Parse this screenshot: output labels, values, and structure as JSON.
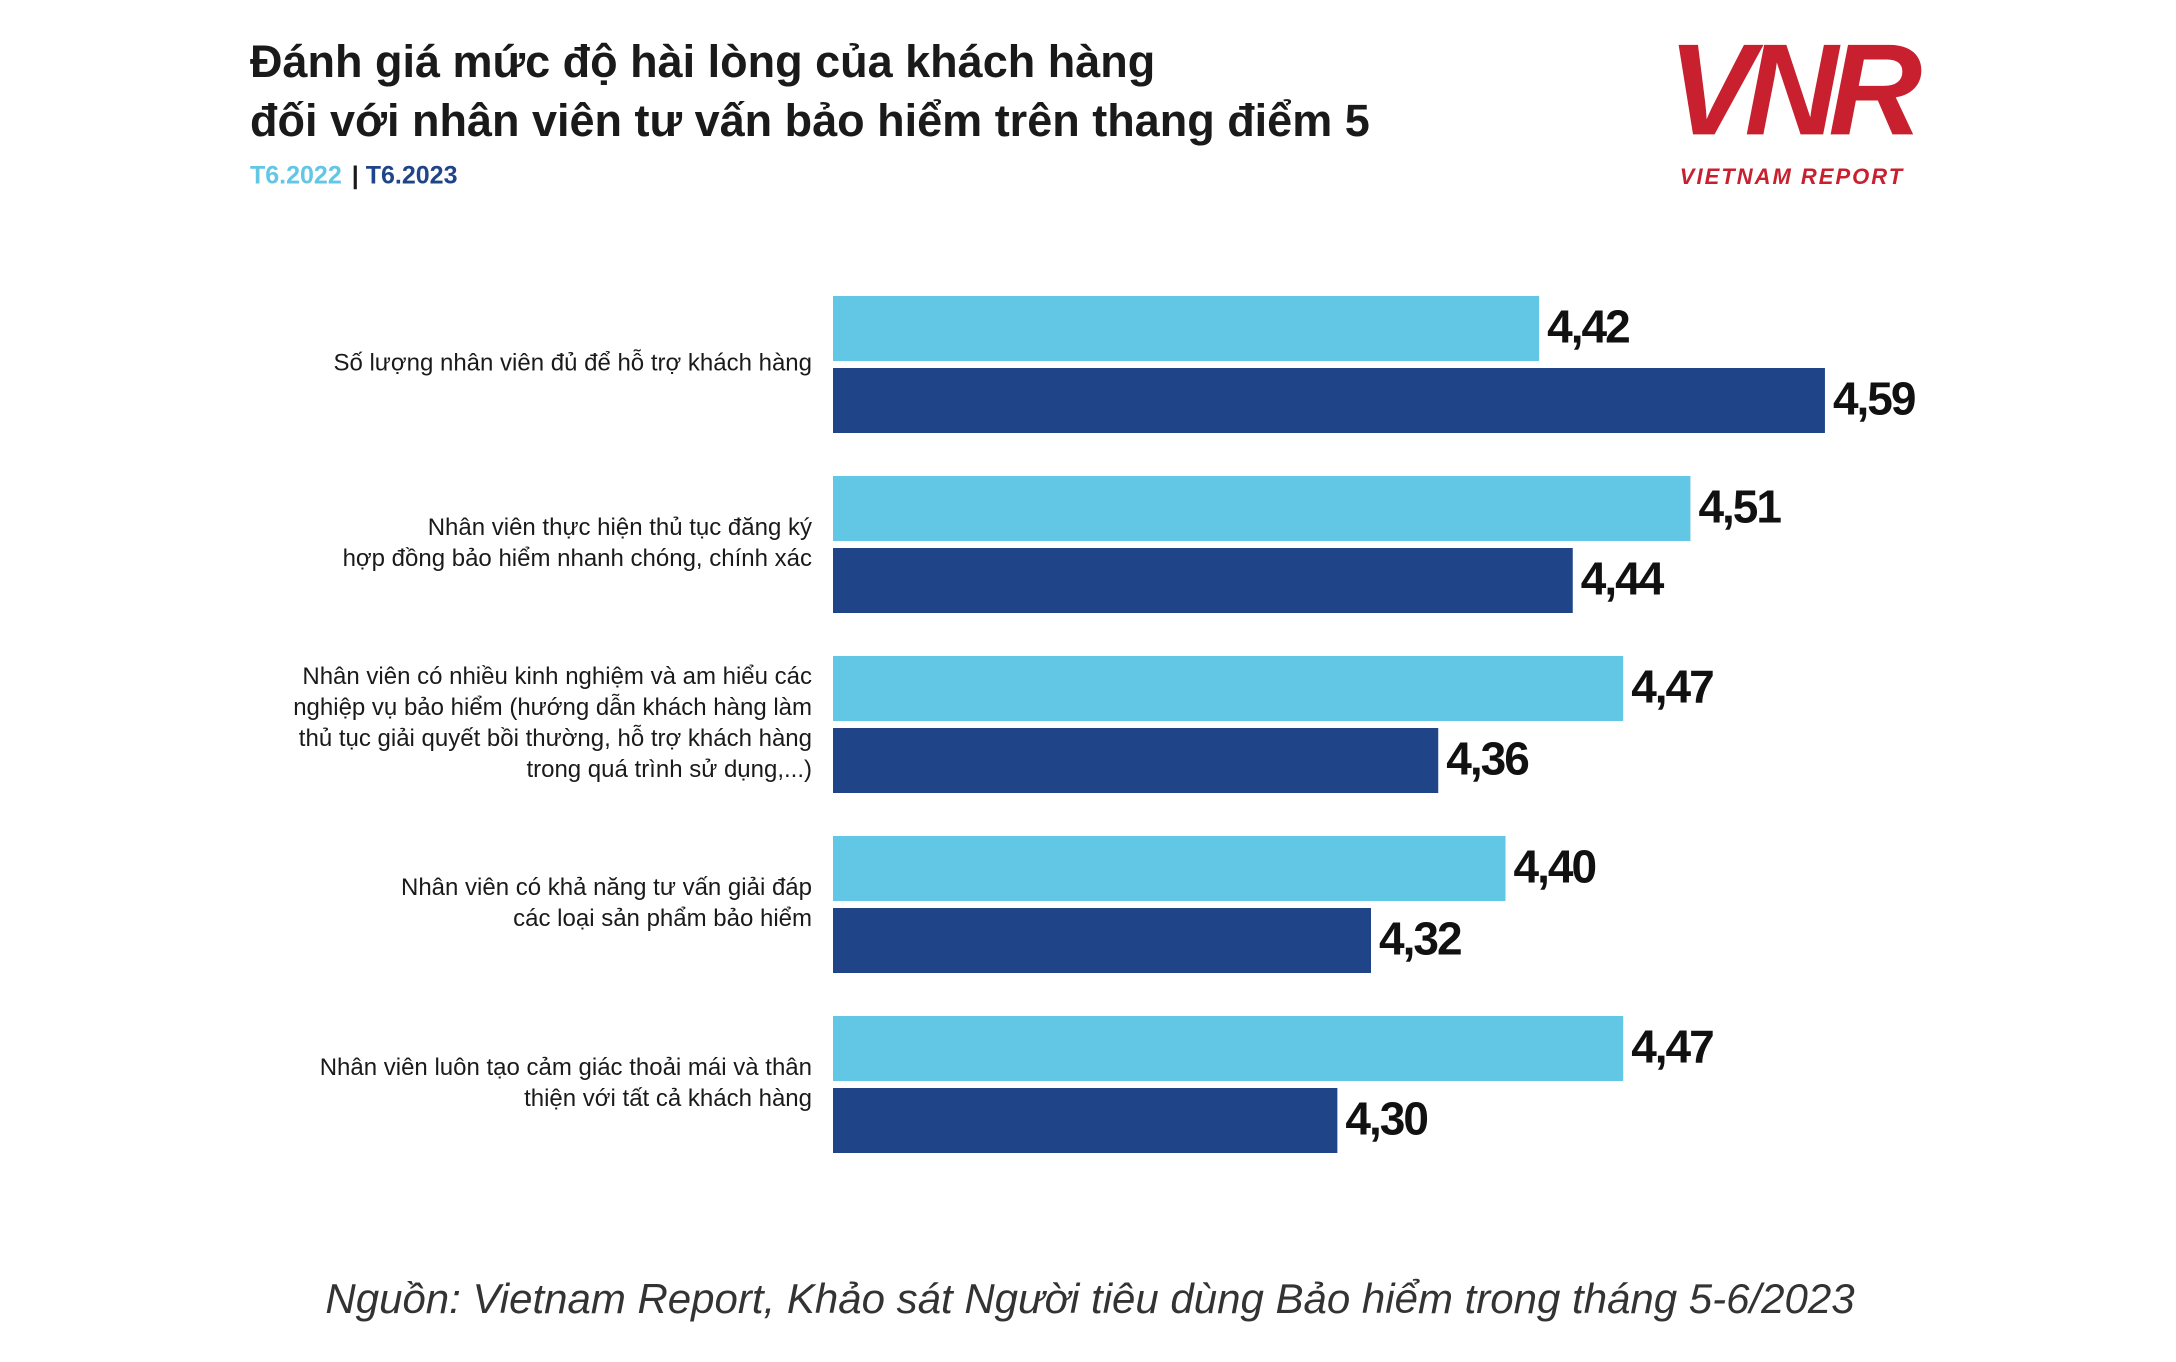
{
  "chart_data": {
    "type": "bar",
    "orientation": "horizontal",
    "title": "Đánh giá mức độ hài lòng của khách hàng\nđối với nhân viên tư vấn bảo hiểm trên thang điểm 5",
    "logo": "VNR",
    "logo_tagline": "VIETNAM REPORT",
    "categories": [
      "Số lượng nhân viên đủ để hỗ trợ khách hàng",
      "Nhân viên thực hiện thủ tục đăng ký\nhợp đồng bảo hiểm nhanh chóng, chính xác",
      "Nhân viên có nhiều kinh nghiệm và am hiểu các\nnghiệp vụ bảo hiểm (hướng dẫn khách hàng làm\nthủ tục giải quyết bồi thường, hỗ trợ khách hàng\ntrong quá trình sử dụng,...)",
      "Nhân viên có khả năng tư vấn giải đáp\ncác loại sản phẩm bảo hiểm",
      "Nhân viên luôn tạo cảm giác thoải mái và thân\nthiện với tất cả khách hàng"
    ],
    "series": [
      {
        "name": "T6.2022",
        "color": "#62c6e5",
        "values": [
          4.42,
          4.51,
          4.47,
          4.4,
          4.47
        ],
        "value_labels": [
          "4,42",
          "4,51",
          "4,47",
          "4,40",
          "4,47"
        ]
      },
      {
        "name": "T6.2023",
        "color": "#1f4488",
        "values": [
          4.59,
          4.44,
          4.36,
          4.32,
          4.3
        ],
        "value_labels": [
          "4,59",
          "4,44",
          "4,36",
          "4,32",
          "4,30"
        ]
      }
    ],
    "xlim": [
      4,
      4.8
    ],
    "source": "Nguồn: Vietnam Report, Khảo sát Người tiêu dùng Bảo hiểm trong tháng 5-6/2023"
  }
}
